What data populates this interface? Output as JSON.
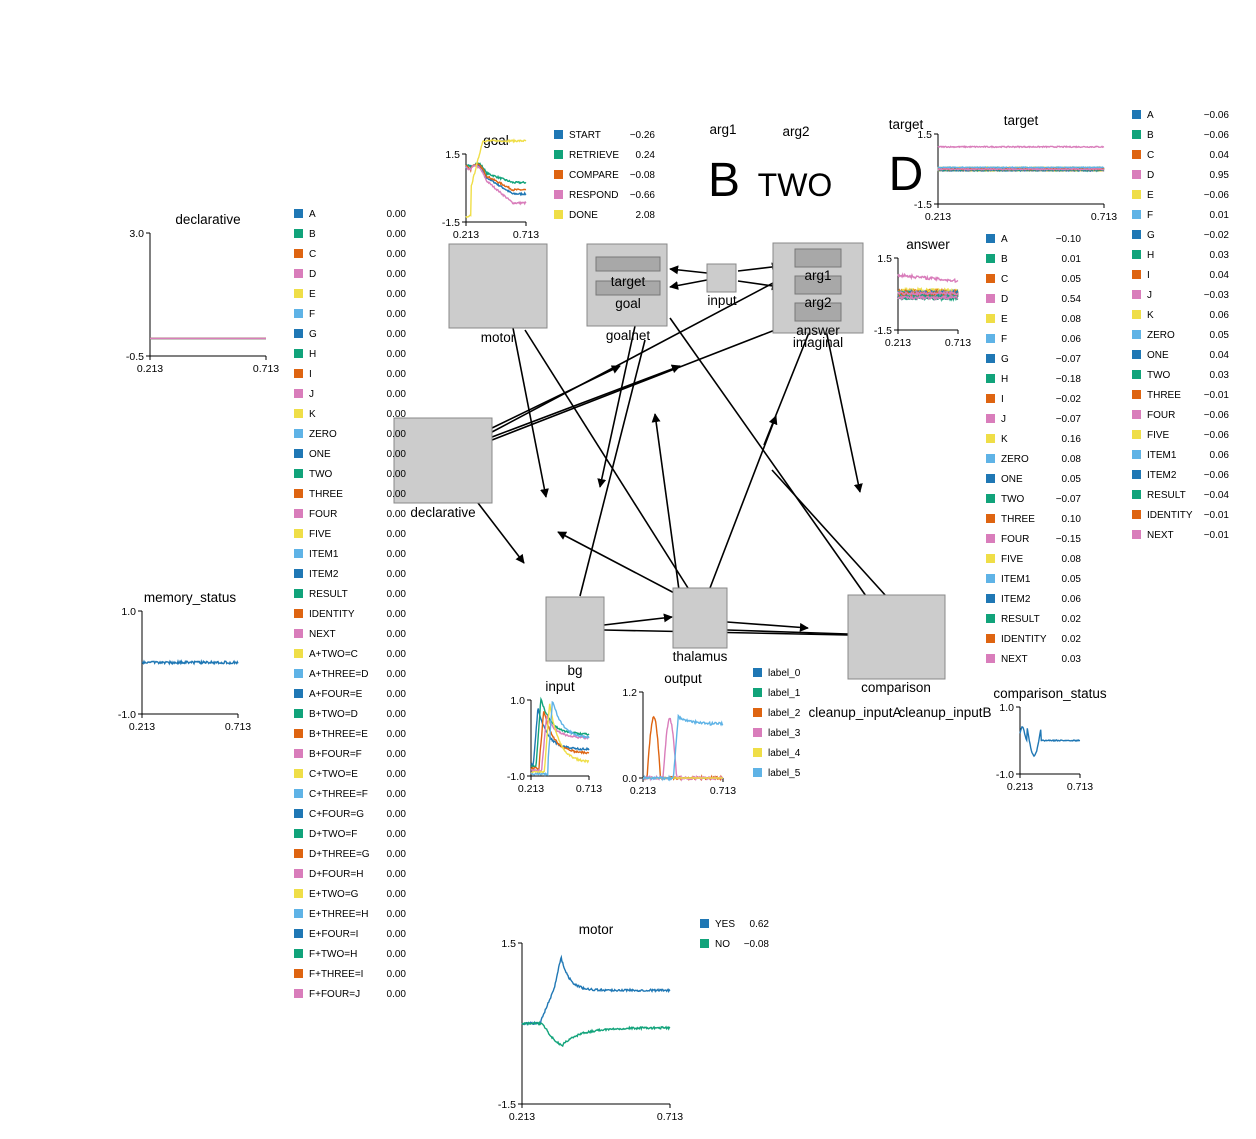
{
  "colors": {
    "c0": "#1f77b4",
    "c1": "#11a37a",
    "c2": "#de6411",
    "c3": "#d97dbb",
    "c4": "#efde47",
    "c5": "#5fb3e6",
    "palette": [
      "#1f77b4",
      "#11a37a",
      "#de6411",
      "#d97dbb",
      "#efde47",
      "#5fb3e6"
    ]
  },
  "networks": {
    "motor": "motor",
    "goalnet": "goalnet",
    "goalnet_target": "target",
    "goalnet_goal": "goal",
    "input": "input",
    "imaginal": "imaginal",
    "imaginal_arg1": "arg1",
    "imaginal_arg2": "arg2",
    "imaginal_answer": "answer",
    "declarative": "declarative",
    "bg": "bg",
    "thalamus": "thalamus",
    "comparison": "comparison",
    "cleanup_inputA": "cleanup_inputA",
    "cleanup_inputB": "cleanup_inputB"
  },
  "pointer_displays": {
    "arg1_label": "arg1",
    "arg1_value": "B",
    "arg2_label": "arg2",
    "arg2_value": "TWO",
    "target_label": "target",
    "target_value": "D"
  },
  "chart_data": [
    {
      "id": "goal",
      "type": "line",
      "title": "goal",
      "x_ticks": [
        "0.213",
        "0.713"
      ],
      "y_ticks": [
        "1.5",
        "-1.5"
      ],
      "ylim": [
        -1.5,
        1.5
      ],
      "legend": [
        {
          "name": "START",
          "value": "−0.26"
        },
        {
          "name": "RETRIEVE",
          "value": "0.24"
        },
        {
          "name": "COMPARE",
          "value": "−0.08"
        },
        {
          "name": "RESPOND",
          "value": "−0.66"
        },
        {
          "name": "DONE",
          "value": "2.08"
        }
      ]
    },
    {
      "id": "target",
      "type": "line",
      "title": "target",
      "x_ticks": [
        "0.213",
        "0.713"
      ],
      "y_ticks": [
        "1.5",
        "-1.5"
      ],
      "ylim": [
        -1.5,
        1.5
      ],
      "legend": [
        {
          "name": "A",
          "value": "−0.06"
        },
        {
          "name": "B",
          "value": "−0.06"
        },
        {
          "name": "C",
          "value": "0.04"
        },
        {
          "name": "D",
          "value": "0.95"
        },
        {
          "name": "E",
          "value": "−0.06"
        },
        {
          "name": "F",
          "value": "0.01"
        },
        {
          "name": "G",
          "value": "−0.02"
        },
        {
          "name": "H",
          "value": "0.03"
        },
        {
          "name": "I",
          "value": "0.04"
        },
        {
          "name": "J",
          "value": "−0.03"
        },
        {
          "name": "K",
          "value": "0.06"
        },
        {
          "name": "ZERO",
          "value": "0.05"
        },
        {
          "name": "ONE",
          "value": "0.04"
        },
        {
          "name": "TWO",
          "value": "0.03"
        },
        {
          "name": "THREE",
          "value": "−0.01"
        },
        {
          "name": "FOUR",
          "value": "−0.06"
        },
        {
          "name": "FIVE",
          "value": "−0.06"
        },
        {
          "name": "ITEM1",
          "value": "0.06"
        },
        {
          "name": "ITEM2",
          "value": "−0.06"
        },
        {
          "name": "RESULT",
          "value": "−0.04"
        },
        {
          "name": "IDENTITY",
          "value": "−0.01"
        },
        {
          "name": "NEXT",
          "value": "−0.01"
        }
      ]
    },
    {
      "id": "answer",
      "type": "line",
      "title": "answer",
      "x_ticks": [
        "0.213",
        "0.713"
      ],
      "y_ticks": [
        "1.5",
        "-1.5"
      ],
      "ylim": [
        -1.5,
        1.5
      ],
      "legend": [
        {
          "name": "A",
          "value": "−0.10"
        },
        {
          "name": "B",
          "value": "0.01"
        },
        {
          "name": "C",
          "value": "0.05"
        },
        {
          "name": "D",
          "value": "0.54"
        },
        {
          "name": "E",
          "value": "0.08"
        },
        {
          "name": "F",
          "value": "0.06"
        },
        {
          "name": "G",
          "value": "−0.07"
        },
        {
          "name": "H",
          "value": "−0.18"
        },
        {
          "name": "I",
          "value": "−0.02"
        },
        {
          "name": "J",
          "value": "−0.07"
        },
        {
          "name": "K",
          "value": "0.16"
        },
        {
          "name": "ZERO",
          "value": "0.08"
        },
        {
          "name": "ONE",
          "value": "0.05"
        },
        {
          "name": "TWO",
          "value": "−0.07"
        },
        {
          "name": "THREE",
          "value": "0.10"
        },
        {
          "name": "FOUR",
          "value": "−0.15"
        },
        {
          "name": "FIVE",
          "value": "0.08"
        },
        {
          "name": "ITEM1",
          "value": "0.05"
        },
        {
          "name": "ITEM2",
          "value": "0.06"
        },
        {
          "name": "RESULT",
          "value": "0.02"
        },
        {
          "name": "IDENTITY",
          "value": "0.02"
        },
        {
          "name": "NEXT",
          "value": "0.03"
        }
      ]
    },
    {
      "id": "declarative",
      "type": "line",
      "title": "declarative",
      "x_ticks": [
        "0.213",
        "0.713"
      ],
      "y_ticks": [
        "3.0",
        "-0.5"
      ],
      "ylim": [
        -0.5,
        3.0
      ],
      "legend": [
        {
          "name": "A",
          "value": "0.00"
        },
        {
          "name": "B",
          "value": "0.00"
        },
        {
          "name": "C",
          "value": "0.00"
        },
        {
          "name": "D",
          "value": "0.00"
        },
        {
          "name": "E",
          "value": "0.00"
        },
        {
          "name": "F",
          "value": "0.00"
        },
        {
          "name": "G",
          "value": "0.00"
        },
        {
          "name": "H",
          "value": "0.00"
        },
        {
          "name": "I",
          "value": "0.00"
        },
        {
          "name": "J",
          "value": "0.00"
        },
        {
          "name": "K",
          "value": "0.00"
        },
        {
          "name": "ZERO",
          "value": "0.00"
        },
        {
          "name": "ONE",
          "value": "0.00"
        },
        {
          "name": "TWO",
          "value": "0.00"
        },
        {
          "name": "THREE",
          "value": "0.00"
        },
        {
          "name": "FOUR",
          "value": "0.00"
        },
        {
          "name": "FIVE",
          "value": "0.00"
        },
        {
          "name": "ITEM1",
          "value": "0.00"
        },
        {
          "name": "ITEM2",
          "value": "0.00"
        },
        {
          "name": "RESULT",
          "value": "0.00"
        },
        {
          "name": "IDENTITY",
          "value": "0.00"
        },
        {
          "name": "NEXT",
          "value": "0.00"
        },
        {
          "name": "A+TWO=C",
          "value": "0.00"
        },
        {
          "name": "A+THREE=D",
          "value": "0.00"
        },
        {
          "name": "A+FOUR=E",
          "value": "0.00"
        },
        {
          "name": "B+TWO=D",
          "value": "0.00"
        },
        {
          "name": "B+THREE=E",
          "value": "0.00"
        },
        {
          "name": "B+FOUR=F",
          "value": "0.00"
        },
        {
          "name": "C+TWO=E",
          "value": "0.00"
        },
        {
          "name": "C+THREE=F",
          "value": "0.00"
        },
        {
          "name": "C+FOUR=G",
          "value": "0.00"
        },
        {
          "name": "D+TWO=F",
          "value": "0.00"
        },
        {
          "name": "D+THREE=G",
          "value": "0.00"
        },
        {
          "name": "D+FOUR=H",
          "value": "0.00"
        },
        {
          "name": "E+TWO=G",
          "value": "0.00"
        },
        {
          "name": "E+THREE=H",
          "value": "0.00"
        },
        {
          "name": "E+FOUR=I",
          "value": "0.00"
        },
        {
          "name": "F+TWO=H",
          "value": "0.00"
        },
        {
          "name": "F+THREE=I",
          "value": "0.00"
        },
        {
          "name": "F+FOUR=J",
          "value": "0.00"
        }
      ]
    },
    {
      "id": "memory_status",
      "type": "line",
      "title": "memory_status",
      "x_ticks": [
        "0.213",
        "0.713"
      ],
      "y_ticks": [
        "1.0",
        "-1.0"
      ],
      "ylim": [
        -1.0,
        1.0
      ],
      "legend": []
    },
    {
      "id": "bg_input",
      "type": "line",
      "title": "input",
      "x_ticks": [
        "0.213",
        "0.713"
      ],
      "y_ticks": [
        "1.0",
        "-1.0"
      ],
      "ylim": [
        -1.0,
        1.0
      ],
      "legend": []
    },
    {
      "id": "thalamus_output",
      "type": "line",
      "title": "output",
      "x_ticks": [
        "0.213",
        "0.713"
      ],
      "y_ticks": [
        "1.2",
        "0.0"
      ],
      "ylim": [
        0.0,
        1.2
      ],
      "legend": [
        {
          "name": "label_0",
          "value": ""
        },
        {
          "name": "label_1",
          "value": ""
        },
        {
          "name": "label_2",
          "value": ""
        },
        {
          "name": "label_3",
          "value": ""
        },
        {
          "name": "label_4",
          "value": ""
        },
        {
          "name": "label_5",
          "value": ""
        }
      ]
    },
    {
      "id": "comparison_status",
      "type": "line",
      "title": "comparison_status",
      "x_ticks": [
        "0.213",
        "0.713"
      ],
      "y_ticks": [
        "1.0",
        "-1.0"
      ],
      "ylim": [
        -1.0,
        1.0
      ],
      "legend": []
    },
    {
      "id": "motor",
      "type": "line",
      "title": "motor",
      "x_ticks": [
        "0.213",
        "0.713"
      ],
      "y_ticks": [
        "1.5",
        "-1.5"
      ],
      "ylim": [
        -1.5,
        1.5
      ],
      "legend": [
        {
          "name": "YES",
          "value": "0.62"
        },
        {
          "name": "NO",
          "value": "−0.08"
        }
      ]
    }
  ]
}
